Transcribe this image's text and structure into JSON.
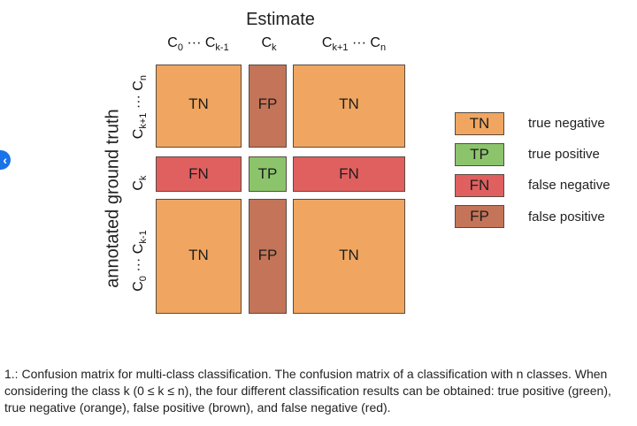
{
  "nav": {
    "back_symbol": "‹"
  },
  "diagram": {
    "estimate_title": "Estimate",
    "y_title": "annotated ground truth",
    "col_labels": {
      "c1": {
        "a": "C",
        "a_sub": "0",
        "mid": " ··· ",
        "b": "C",
        "b_sub": "k-1"
      },
      "c2": {
        "a": "C",
        "a_sub": "k"
      },
      "c3": {
        "a": "C",
        "a_sub": "k+1",
        "mid": " ··· ",
        "b": "C",
        "b_sub": "n"
      }
    },
    "row_labels": {
      "r1": {
        "a": "C",
        "a_sub": "k+1",
        "mid": " ··· ",
        "b": "C",
        "b_sub": "n"
      },
      "r2": {
        "a": "C",
        "a_sub": "k"
      },
      "r3": {
        "a": "C",
        "a_sub": "0",
        "mid": " ··· ",
        "b": "C",
        "b_sub": "k-1"
      }
    },
    "cells": {
      "r1c1": "TN",
      "r1c2": "FP",
      "r1c3": "TN",
      "r2c1": "FN",
      "r2c2": "TP",
      "r2c3": "FN",
      "r3c1": "TN",
      "r3c2": "FP",
      "r3c3": "TN"
    },
    "colors": {
      "TN": "#f0a660",
      "FP": "#c47458",
      "FN": "#e06060",
      "TP": "#8cc46c"
    }
  },
  "legend": [
    {
      "code": "TN",
      "text": "true negative"
    },
    {
      "code": "TP",
      "text": "true positive"
    },
    {
      "code": "FN",
      "text": "false negative"
    },
    {
      "code": "FP",
      "text": "false positive"
    }
  ],
  "caption": "1.: Confusion matrix for multi-class classification. The confusion matrix of a classification with n classes. When considering the class k (0 ≤ k ≤ n), the four different classification results can be obtained: true positive (green), true negative (orange), false positive (brown), and false negative (red)."
}
